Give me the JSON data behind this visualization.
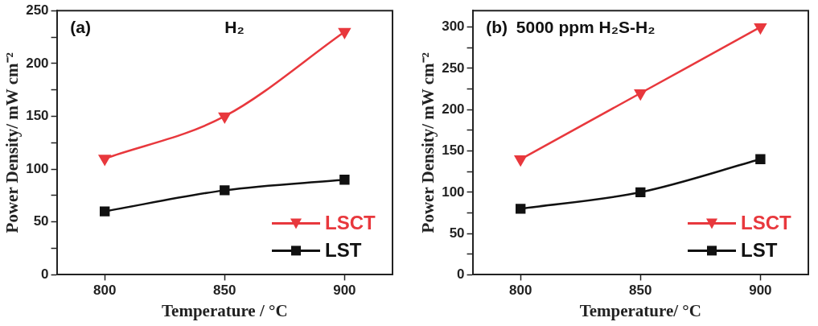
{
  "chart_data": [
    {
      "type": "line",
      "annotations": [
        "(a)",
        "H₂"
      ],
      "xlabel": "Temperature / °C",
      "ylabel": "Power Density/ mW cm⁻²",
      "x": [
        800,
        850,
        900
      ],
      "xlim": [
        780,
        920
      ],
      "xticks": [
        800,
        850,
        900
      ],
      "ylim": [
        0,
        250
      ],
      "yticks": [
        0,
        {
          "value": 25,
          "label": null
        },
        50,
        {
          "value": 75,
          "label": null
        },
        100,
        {
          "value": 125,
          "label": null
        },
        150,
        {
          "value": 175,
          "label": null
        },
        200,
        {
          "value": 225,
          "label": null
        },
        250
      ],
      "legend": "bottom right",
      "grid": false,
      "series": [
        {
          "name": "LSCT",
          "color": "#e8383d",
          "marker": "triangle",
          "values": [
            110,
            150,
            230
          ]
        },
        {
          "name": "LST",
          "color": "#111111",
          "marker": "square",
          "values": [
            60,
            80,
            90
          ]
        }
      ]
    },
    {
      "type": "line",
      "annotations": [
        "(b)",
        "5000 ppm H₂S-H₂"
      ],
      "xlabel": "Temperature/ °C",
      "ylabel": "Power Density/ mW cm⁻²",
      "x": [
        800,
        850,
        900
      ],
      "xlim": [
        780,
        920
      ],
      "xticks": [
        800,
        850,
        900
      ],
      "ylim": [
        0,
        320
      ],
      "yticks": [
        0,
        {
          "value": 25,
          "label": null
        },
        50,
        {
          "value": 75,
          "label": null
        },
        100,
        {
          "value": 125,
          "label": null
        },
        150,
        {
          "value": 175,
          "label": null
        },
        200,
        {
          "value": 225,
          "label": null
        },
        250,
        {
          "value": 275,
          "label": null
        },
        300
      ],
      "legend": "bottom right",
      "grid": false,
      "series": [
        {
          "name": "LSCT",
          "color": "#e8383d",
          "marker": "triangle",
          "values": [
            140,
            220,
            300
          ]
        },
        {
          "name": "LST",
          "color": "#111111",
          "marker": "square",
          "values": [
            80,
            100,
            140
          ]
        }
      ]
    }
  ]
}
